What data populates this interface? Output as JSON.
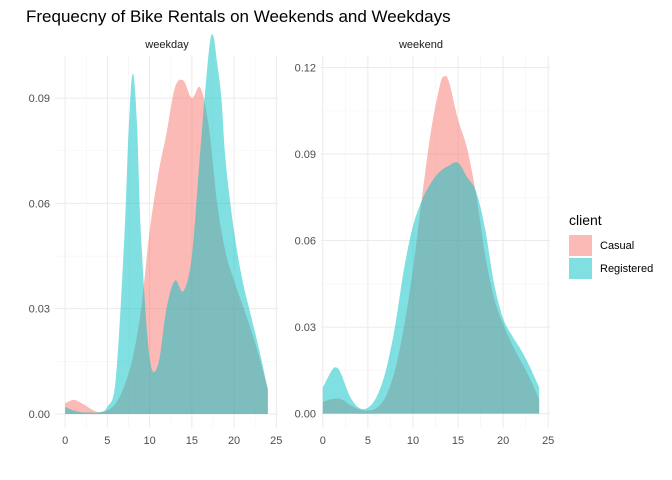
{
  "chart_data": {
    "type": "area",
    "title": "Frequecny of Bike Rentals on Weekends and Weekdays",
    "legend": {
      "title": "client",
      "position": "right",
      "entries": [
        {
          "name": "Casual",
          "color": "#F8766D"
        },
        {
          "name": "Registered",
          "color": "#00BFC4"
        }
      ]
    },
    "grid": true,
    "panels": [
      {
        "label": "weekday",
        "xlim": [
          -1.2,
          25.2
        ],
        "ylim": [
          -0.004,
          0.102
        ],
        "xticks": [
          0,
          5,
          10,
          15,
          20,
          25
        ],
        "yticks": [
          0.0,
          0.03,
          0.06,
          0.09
        ],
        "ytick_labels": [
          "0.00",
          "0.03",
          "0.06",
          "0.09"
        ],
        "series": [
          {
            "name": "Casual",
            "x": [
              0,
              1,
              2,
              3,
              4,
              5,
              6,
              7,
              8,
              9,
              10,
              11,
              12,
              13,
              14,
              15,
              16,
              17,
              18,
              19,
              20,
              21,
              22,
              23,
              24
            ],
            "y": [
              0.003,
              0.004,
              0.003,
              0.0015,
              0.0005,
              0.001,
              0.003,
              0.008,
              0.016,
              0.03,
              0.052,
              0.068,
              0.08,
              0.093,
              0.095,
              0.09,
              0.093,
              0.082,
              0.06,
              0.046,
              0.038,
              0.031,
              0.024,
              0.016,
              0.007
            ]
          },
          {
            "name": "Registered",
            "x": [
              0,
              1,
              2,
              3,
              4,
              5,
              6,
              7,
              7.5,
              8,
              8.5,
              9,
              10,
              11,
              12,
              13,
              14,
              15,
              16,
              17,
              17.5,
              18,
              18.5,
              19,
              20,
              21,
              22,
              23,
              24
            ],
            "y": [
              0.002,
              0.001,
              0.0005,
              0.0004,
              0.0005,
              0.002,
              0.01,
              0.05,
              0.08,
              0.097,
              0.083,
              0.05,
              0.016,
              0.014,
              0.03,
              0.038,
              0.035,
              0.045,
              0.075,
              0.103,
              0.108,
              0.1,
              0.09,
              0.072,
              0.052,
              0.038,
              0.028,
              0.018,
              0.007
            ]
          }
        ]
      },
      {
        "label": "weekend",
        "xlim": [
          -0.2,
          25.2
        ],
        "ylim": [
          -0.005,
          0.124
        ],
        "xticks": [
          0,
          5,
          10,
          15,
          20,
          25
        ],
        "yticks": [
          0.0,
          0.03,
          0.06,
          0.09,
          0.12
        ],
        "ytick_labels": [
          "0.00",
          "0.03",
          "0.06",
          "0.09",
          "0.12"
        ],
        "series": [
          {
            "name": "Casual",
            "x": [
              0,
              1,
              2,
              3,
              4,
              5,
              6,
              7,
              8,
              9,
              10,
              11,
              12,
              13,
              13.5,
              14,
              15,
              16,
              17,
              18,
              19,
              20,
              21,
              22,
              23,
              24
            ],
            "y": [
              0.004,
              0.005,
              0.005,
              0.003,
              0.0015,
              0.001,
              0.002,
              0.006,
              0.015,
              0.03,
              0.05,
              0.075,
              0.098,
              0.114,
              0.117,
              0.115,
              0.102,
              0.092,
              0.076,
              0.055,
              0.04,
              0.031,
              0.024,
              0.018,
              0.012,
              0.005
            ]
          },
          {
            "name": "Registered",
            "x": [
              0,
              1,
              1.5,
              2,
              3,
              4,
              5,
              6,
              7,
              8,
              9,
              10,
              11,
              12,
              13,
              14,
              15,
              16,
              17,
              18,
              19,
              20,
              21,
              22,
              23,
              24
            ],
            "y": [
              0.009,
              0.015,
              0.016,
              0.014,
              0.006,
              0.002,
              0.002,
              0.006,
              0.015,
              0.03,
              0.05,
              0.065,
              0.074,
              0.08,
              0.084,
              0.086,
              0.087,
              0.082,
              0.077,
              0.064,
              0.045,
              0.033,
              0.027,
              0.022,
              0.016,
              0.009
            ]
          }
        ]
      }
    ]
  }
}
